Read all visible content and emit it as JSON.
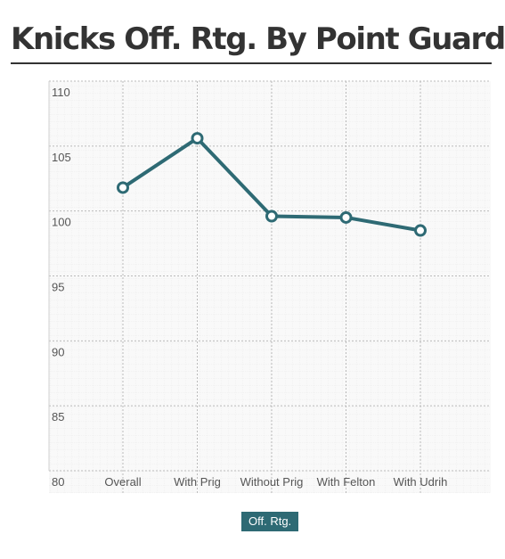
{
  "chart_data": {
    "type": "line",
    "title": "Knicks Off. Rtg. By Point Guard",
    "categories": [
      "Overall",
      "With Prig",
      "Without Prig",
      "With Felton",
      "With Udrih"
    ],
    "series": [
      {
        "name": "Off. Rtg.",
        "values": [
          101.8,
          105.6,
          99.6,
          99.5,
          98.5
        ]
      }
    ],
    "y_ticks": [
      "80",
      "85",
      "90",
      "95",
      "100",
      "105",
      "110"
    ],
    "ylim": [
      80,
      110
    ],
    "grid": true,
    "legend": "bottom-center",
    "colors": {
      "series": "#2e6a74",
      "marker_fill": "#ffffff",
      "plot_background": "#f9f9f9",
      "grid": "#bbbbbb",
      "title": "#333333"
    }
  }
}
